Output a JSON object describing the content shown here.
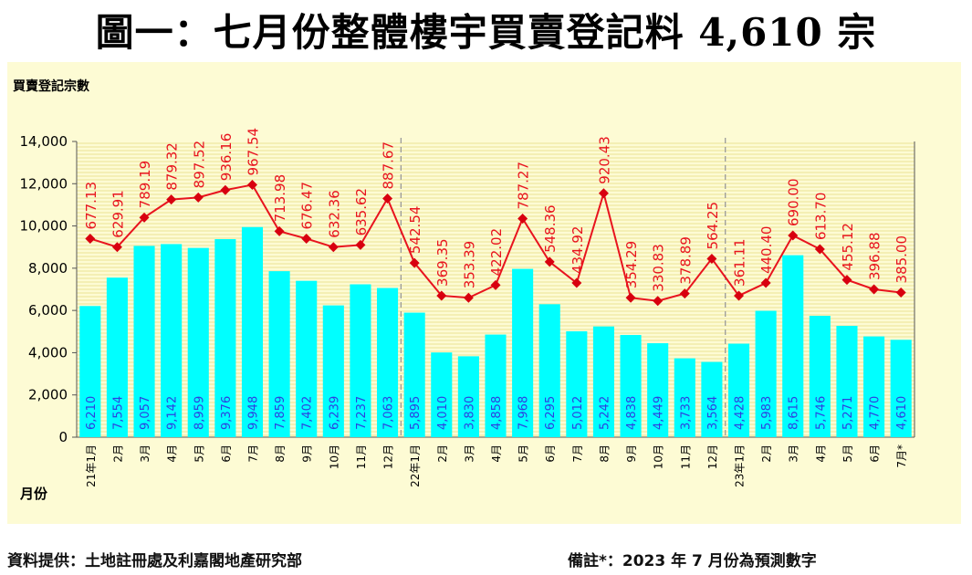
{
  "title": "圖一：七月份整體樓宇買賣登記料 4,610 宗",
  "chart_data": {
    "type": "bar+line",
    "ylabel": "買賣登記宗數",
    "xlabel": "月份",
    "ylim": [
      0,
      14000
    ],
    "yticks": [
      "0",
      "2,000",
      "4,000",
      "6,000",
      "8,000",
      "10,000",
      "12,000",
      "14,000"
    ],
    "categories": [
      "21年1月",
      "2月",
      "3月",
      "4月",
      "5月",
      "6月",
      "7月",
      "8月",
      "9月",
      "10月",
      "11月",
      "12月",
      "22年1月",
      "2月",
      "3月",
      "4月",
      "5月",
      "6月",
      "7月",
      "8月",
      "9月",
      "10月",
      "11月",
      "12月",
      "23年1月",
      "2月",
      "3月",
      "4月",
      "5月",
      "6月",
      "7月*"
    ],
    "bar_values": [
      6210,
      7554,
      9057,
      9142,
      8959,
      9376,
      9948,
      7859,
      7402,
      6239,
      7237,
      7063,
      5895,
      4010,
      3830,
      4858,
      7968,
      6295,
      5012,
      5242,
      4838,
      4449,
      3733,
      3564,
      4428,
      5983,
      8615,
      5746,
      5271,
      4770,
      4610
    ],
    "bar_labels": [
      "6,210",
      "7,554",
      "9,057",
      "9,142",
      "8,959",
      "9,376",
      "9,948",
      "7,859",
      "7,402",
      "6,239",
      "7,237",
      "7,063",
      "5,895",
      "4,010",
      "3,830",
      "4,858",
      "7,968",
      "6,295",
      "5,012",
      "5,242",
      "4,838",
      "4,449",
      "3,733",
      "3,564",
      "4,428",
      "5,983",
      "8,615",
      "5,746",
      "5,271",
      "4,770",
      "4,610"
    ],
    "line_values": [
      9400,
      9000,
      10400,
      11250,
      11350,
      11700,
      11950,
      9750,
      9400,
      9000,
      9100,
      11300,
      8250,
      6700,
      6600,
      7200,
      10350,
      8300,
      7300,
      11550,
      6600,
      6450,
      6800,
      8450,
      6700,
      7300,
      9550,
      8900,
      7450,
      7000,
      6850
    ],
    "line_labels": [
      "677.13",
      "629.91",
      "789.19",
      "879.32",
      "897.52",
      "936.16",
      "967.54",
      "713.98",
      "676.47",
      "632.36",
      "635.62",
      "887.67",
      "542.54",
      "369.35",
      "353.39",
      "422.02",
      "787.27",
      "548.36",
      "434.92",
      "920.43",
      "354.29",
      "330.83",
      "378.89",
      "564.25",
      "361.11",
      "440.40",
      "690.00",
      "613.70",
      "455.12",
      "396.88",
      "385.00"
    ],
    "year_dividers_after_index": [
      11,
      23
    ],
    "grid": true,
    "colors": {
      "panel_bg": "#fdfbd4",
      "stripe": "#f2ebaa",
      "bar": "#00ffff",
      "bar_label": "#2d3fe0",
      "line": "#e8141e",
      "marker": "#d8000f",
      "axis": "#555555",
      "divider": "#9a9a9a"
    }
  },
  "footer": {
    "source": "資料提供：土地註冊處及利嘉閣地產研究部",
    "note": "備註*：2023 年 7 月份為預測數字"
  }
}
